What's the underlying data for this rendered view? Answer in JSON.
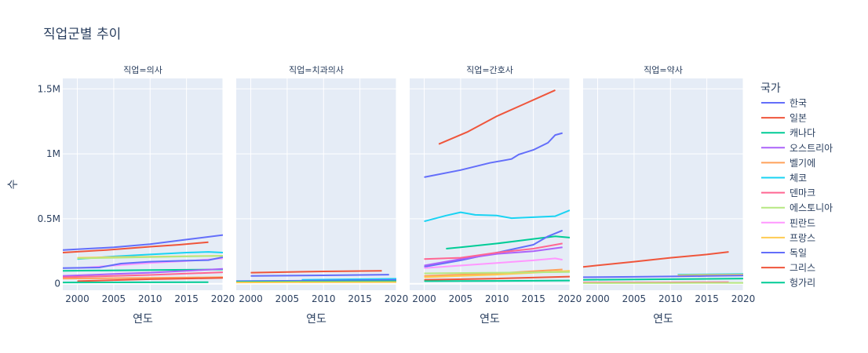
{
  "chart_data": {
    "type": "line",
    "title": "직업군별 추이",
    "xlabel": "연도",
    "ylabel": "수",
    "xlim": [
      1998,
      2020
    ],
    "ylim": [
      -50000,
      1580000
    ],
    "x_ticks": [
      2000,
      2005,
      2010,
      2015,
      2020
    ],
    "y_ticks": [
      {
        "value": 0,
        "label": "0"
      },
      {
        "value": 500000,
        "label": "0.5M"
      },
      {
        "value": 1000000,
        "label": "1M"
      },
      {
        "value": 1500000,
        "label": "1.5M"
      }
    ],
    "legend_title": "국가",
    "legend_position": "right",
    "countries": [
      {
        "name": "한국",
        "color": "#636efa"
      },
      {
        "name": "일본",
        "color": "#EF553B"
      },
      {
        "name": "캐나다",
        "color": "#00cc96"
      },
      {
        "name": "오스트리아",
        "color": "#ab63fa"
      },
      {
        "name": "벨기에",
        "color": "#FFA15A"
      },
      {
        "name": "체코",
        "color": "#19d3f3"
      },
      {
        "name": "덴마크",
        "color": "#FF6692"
      },
      {
        "name": "에스토니아",
        "color": "#B6E880"
      },
      {
        "name": "핀란드",
        "color": "#FF97FF"
      },
      {
        "name": "프랑스",
        "color": "#FECB52"
      },
      {
        "name": "독일",
        "color": "#636efa"
      },
      {
        "name": "그리스",
        "color": "#EF553B"
      },
      {
        "name": "헝가리",
        "color": "#00cc96"
      }
    ],
    "facets": [
      {
        "label": "직업=의사",
        "series": [
          {
            "country": "독일",
            "x": [
              1998,
              2005,
              2010,
              2015,
              2020
            ],
            "y": [
              260000,
              280000,
              305000,
              340000,
              375000
            ]
          },
          {
            "country": "일본",
            "x": [
              1998,
              2004,
              2010,
              2014,
              2018
            ],
            "y": [
              240000,
              260000,
              285000,
              300000,
              320000
            ]
          },
          {
            "country": "체코",
            "x": [
              2000,
              2005,
              2010,
              2015,
              2018,
              2020
            ],
            "y": [
              190000,
              210000,
              225000,
              240000,
              245000,
              240000
            ]
          },
          {
            "country": "프랑스",
            "x": [
              2000,
              2005,
              2010,
              2015,
              2020
            ],
            "y": [
              200000,
              205000,
              208000,
              212000,
              215000
            ]
          },
          {
            "country": "핀란드",
            "x": [
              2000,
              2005,
              2010,
              2015,
              2020
            ],
            "y": [
              120000,
              140000,
              160000,
              175000,
              195000
            ]
          },
          {
            "country": "한국",
            "x": [
              1998,
              2003,
              2006,
              2010,
              2015,
              2018,
              2020
            ],
            "y": [
              120000,
              125000,
              155000,
              170000,
              178000,
              182000,
              205000
            ]
          },
          {
            "country": "에스토니아",
            "x": [
              2000,
              2005,
              2010,
              2015,
              2020
            ],
            "y": [
              195000,
              200000,
              205000,
              210000,
              215000
            ]
          },
          {
            "country": "헝가리",
            "x": [
              1998,
              2010,
              2020
            ],
            "y": [
              100000,
              105000,
              110000
            ]
          },
          {
            "country": "오스트리아",
            "x": [
              1998,
              2005,
              2010,
              2015,
              2020
            ],
            "y": [
              60000,
              75000,
              85000,
              100000,
              115000
            ]
          },
          {
            "country": "덴마크",
            "x": [
              1998,
              2005,
              2010,
              2015,
              2020
            ],
            "y": [
              50000,
              60000,
              68000,
              78000,
              88000
            ]
          },
          {
            "country": "벨기에",
            "x": [
              1998,
              2010,
              2020
            ],
            "y": [
              40000,
              45000,
              50000
            ]
          },
          {
            "country": "그리스",
            "x": [
              2000,
              2005,
              2010,
              2015,
              2020
            ],
            "y": [
              20000,
              28000,
              35000,
              40000,
              45000
            ]
          },
          {
            "country": "캐나다",
            "x": [
              1998,
              2008,
              2018
            ],
            "y": [
              10000,
              11000,
              12000
            ]
          }
        ]
      },
      {
        "label": "직업=치과의사",
        "series": [
          {
            "country": "그리스",
            "x": [
              2000,
              2010,
              2018
            ],
            "y": [
              85000,
              95000,
              100000
            ]
          },
          {
            "country": "독일",
            "x": [
              2000,
              2010,
              2019
            ],
            "y": [
              60000,
              65000,
              70000
            ]
          },
          {
            "country": "체코",
            "x": [
              2007,
              2015,
              2020
            ],
            "y": [
              30000,
              35000,
              38000
            ]
          },
          {
            "country": "한국",
            "x": [
              1998,
              2010,
              2020
            ],
            "y": [
              20000,
              25000,
              30000
            ]
          },
          {
            "country": "캐나다",
            "x": [
              1998,
              2010,
              2020
            ],
            "y": [
              15000,
              17000,
              20000
            ]
          },
          {
            "country": "프랑스",
            "x": [
              1998,
              2010,
              2020
            ],
            "y": [
              10000,
              12000,
              13000
            ]
          }
        ]
      },
      {
        "label": "직업=간호사",
        "series": [
          {
            "country": "일본",
            "x": [
              2002,
              2006,
              2010,
              2014,
              2018
            ],
            "y": [
              1075000,
              1170000,
              1290000,
              1390000,
              1490000
            ]
          },
          {
            "country": "한국",
            "x": [
              2000,
              2005,
              2009,
              2012,
              2013,
              2015,
              2017,
              2018,
              2019
            ],
            "y": [
              820000,
              875000,
              930000,
              960000,
              995000,
              1030000,
              1085000,
              1145000,
              1160000
            ]
          },
          {
            "country": "체코",
            "x": [
              2000,
              2003,
              2005,
              2007,
              2010,
              2012,
              2015,
              2018,
              2020
            ],
            "y": [
              480000,
              525000,
              550000,
              530000,
              525000,
              505000,
              512000,
              520000,
              565000
            ]
          },
          {
            "country": "캐나다",
            "x": [
              2003,
              2005,
              2010,
              2015,
              2018,
              2020
            ],
            "y": [
              270000,
              280000,
              310000,
              345000,
              365000,
              355000
            ]
          },
          {
            "country": "독일",
            "x": [
              2000,
              2005,
              2010,
              2015,
              2017,
              2019
            ],
            "y": [
              130000,
              180000,
              240000,
              300000,
              365000,
              410000
            ]
          },
          {
            "country": "오스트리아",
            "x": [
              2000,
              2005,
              2010,
              2015,
              2019
            ],
            "y": [
              140000,
              190000,
              230000,
              250000,
              280000
            ]
          },
          {
            "country": "덴마크",
            "x": [
              2000,
              2005,
              2010,
              2015,
              2019
            ],
            "y": [
              190000,
              200000,
              240000,
              270000,
              310000
            ]
          },
          {
            "country": "핀란드",
            "x": [
              2000,
              2005,
              2010,
              2015,
              2018,
              2019
            ],
            "y": [
              120000,
              140000,
              160000,
              180000,
              195000,
              185000
            ]
          },
          {
            "country": "벨기에",
            "x": [
              2000,
              2010,
              2019
            ],
            "y": [
              60000,
              80000,
              110000
            ]
          },
          {
            "country": "프랑스",
            "x": [
              2000,
              2010,
              2020
            ],
            "y": [
              50000,
              70000,
              100000
            ]
          },
          {
            "country": "에스토니아",
            "x": [
              2000,
              2010,
              2020
            ],
            "y": [
              80000,
              85000,
              90000
            ]
          },
          {
            "country": "그리스",
            "x": [
              2000,
              2010,
              2020
            ],
            "y": [
              30000,
              40000,
              55000
            ]
          },
          {
            "country": "헝가리",
            "x": [
              2000,
              2010,
              2020
            ],
            "y": [
              20000,
              22000,
              25000
            ]
          }
        ]
      },
      {
        "label": "직업=약사",
        "series": [
          {
            "country": "그리스",
            "x": [
              1998,
              2005,
              2010,
              2015,
              2018
            ],
            "y": [
              130000,
              170000,
              200000,
              225000,
              245000
            ]
          },
          {
            "country": "체코",
            "x": [
              2011,
              2015,
              2020
            ],
            "y": [
              70000,
              72000,
              75000
            ]
          },
          {
            "country": "프랑스",
            "x": [
              2011,
              2015,
              2020
            ],
            "y": [
              65000,
              68000,
              70000
            ]
          },
          {
            "country": "한국",
            "x": [
              1998,
              2005,
              2010,
              2015,
              2020
            ],
            "y": [
              50000,
              53000,
              56000,
              60000,
              63000
            ]
          },
          {
            "country": "캐나다",
            "x": [
              1998,
              2010,
              2020
            ],
            "y": [
              30000,
              35000,
              40000
            ]
          },
          {
            "country": "덴마크",
            "x": [
              1998,
              2008,
              2018
            ],
            "y": [
              10000,
              10000,
              12000
            ]
          },
          {
            "country": "에스토니아",
            "x": [
              1998,
              2010,
              2020
            ],
            "y": [
              5000,
              6000,
              7000
            ]
          }
        ]
      }
    ]
  }
}
